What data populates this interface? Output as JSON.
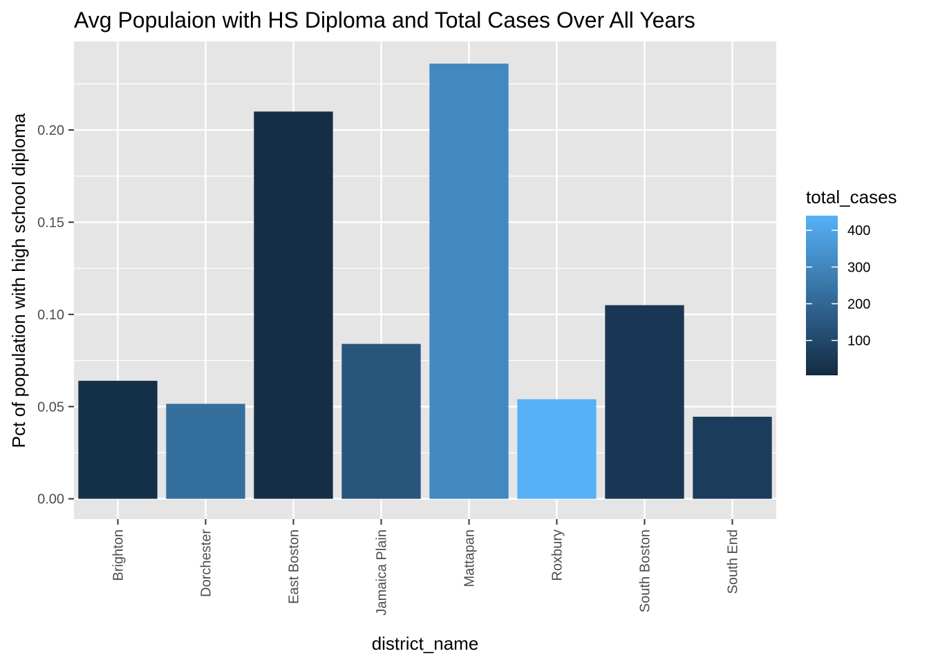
{
  "chart_data": {
    "type": "bar",
    "title": "Avg Populaion with HS Diploma and Total Cases Over All Years",
    "xlabel": "district_name",
    "ylabel": "Pct of population with high school diploma",
    "categories": [
      "Brighton",
      "Dorchester",
      "East Boston",
      "Jamaica Plain",
      "Mattapan",
      "Roxbury",
      "South Boston",
      "South End"
    ],
    "values": [
      0.064,
      0.0515,
      0.21,
      0.084,
      0.236,
      0.054,
      0.105,
      0.0445
    ],
    "fill_values": [
      20,
      225,
      15,
      140,
      310,
      440,
      45,
      60
    ],
    "ylim": [
      -0.011,
      0.248
    ],
    "yticks": [
      0.0,
      0.05,
      0.1,
      0.15,
      0.2
    ],
    "ytick_labels": [
      "0.00",
      "0.05",
      "0.10",
      "0.15",
      "0.20"
    ],
    "grid": true,
    "legend": {
      "title": "total_cases",
      "position": "right",
      "ticks": [
        100,
        200,
        300,
        400
      ],
      "tick_labels": [
        "100",
        "200",
        "300",
        "400"
      ],
      "range": [
        5,
        440
      ],
      "colors": {
        "low": "#132B43",
        "high": "#56B1F7"
      }
    },
    "panel_background": "#E5E5E5",
    "gridline_color": "#FFFFFF"
  }
}
